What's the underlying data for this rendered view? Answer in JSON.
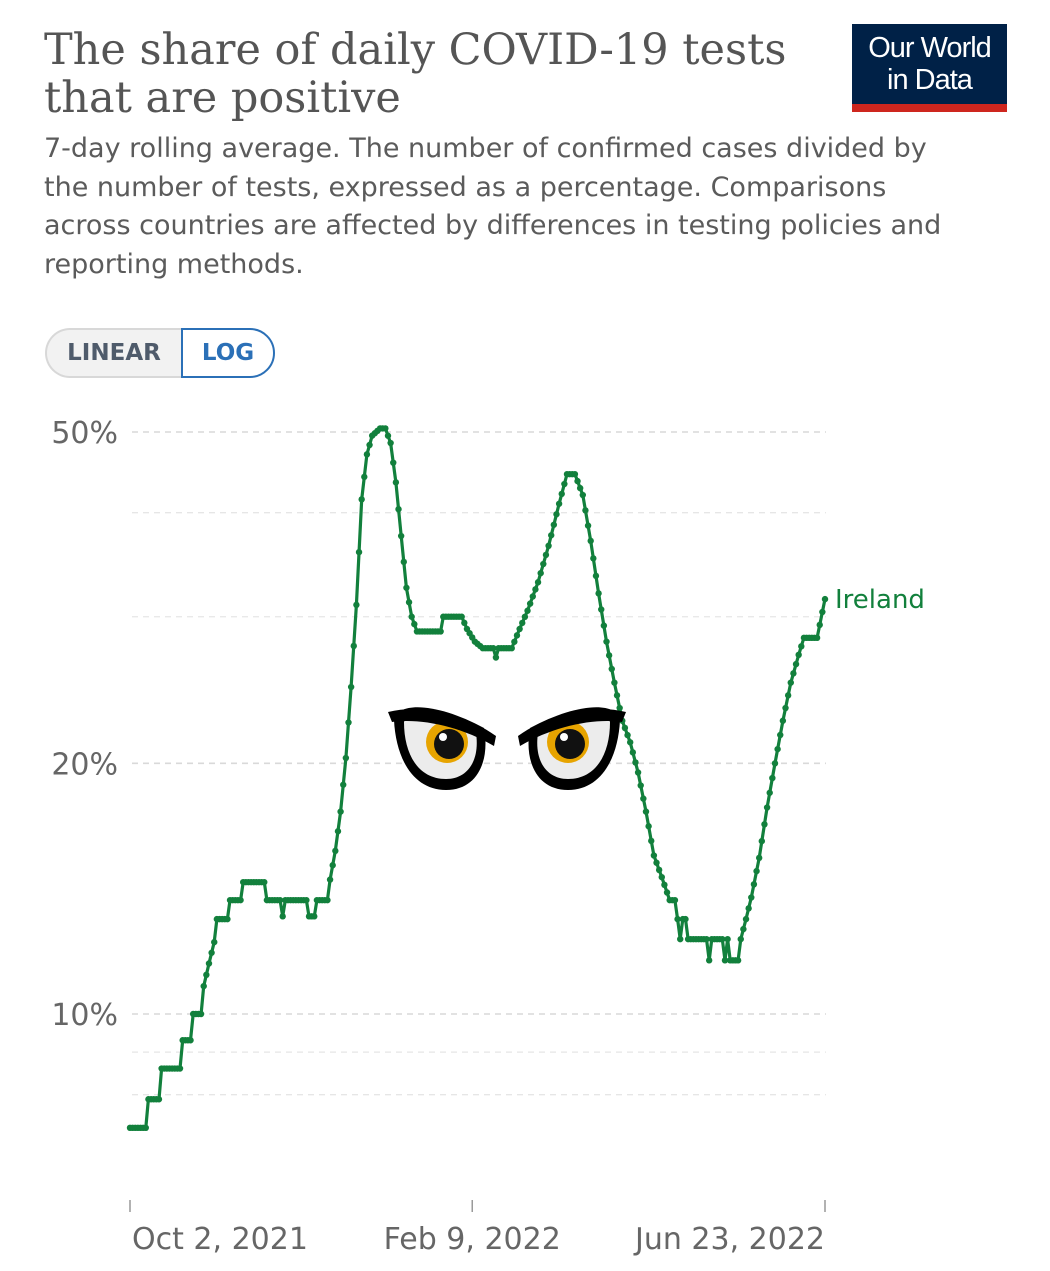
{
  "header": {
    "title": "The share of daily COVID-19 tests that are positive",
    "subtitle": "7-day rolling average. The number of confirmed cases divided by the number of tests, expressed as a percentage. Comparisons across countries are affected by differences in testing policies and reporting methods.",
    "logo_line1": "Our World",
    "logo_line2": "in Data"
  },
  "scale_toggle": {
    "linear_label": "LINEAR",
    "log_label": "LOG",
    "selected": "LOG"
  },
  "colors": {
    "series": "#12803c",
    "grid": "#d9d9d9",
    "logo_bg": "#002147",
    "logo_bar": "#ce261e",
    "toggle_active": "#2b70b7"
  },
  "overlay": {
    "icon": "angry-eyes-icon"
  },
  "chart_data": {
    "type": "line",
    "title": "The share of daily COVID-19 tests that are positive",
    "yscale": "log",
    "ylim": [
      7.2,
      52
    ],
    "y_ticks": [
      {
        "value": 50,
        "label": "50%"
      },
      {
        "value": 20,
        "label": "20%"
      },
      {
        "value": 10,
        "label": "10%"
      }
    ],
    "y_minor_gridlines": [
      40,
      30,
      9,
      8
    ],
    "xlim": [
      "2021-10-02",
      "2022-06-23"
    ],
    "x_ticks": [
      {
        "value": "2021-10-02",
        "label": "Oct 2, 2021"
      },
      {
        "value": "2022-02-09",
        "label": "Feb 9, 2022"
      },
      {
        "value": "2022-06-23",
        "label": "Jun 23, 2022"
      }
    ],
    "grid": true,
    "series": [
      {
        "name": "Ireland",
        "label_position": "end",
        "points": [
          [
            "2021-10-02",
            7.3
          ],
          [
            "2021-10-08",
            7.3
          ],
          [
            "2021-10-09",
            7.9
          ],
          [
            "2021-10-13",
            7.9
          ],
          [
            "2021-10-14",
            8.6
          ],
          [
            "2021-10-21",
            8.6
          ],
          [
            "2021-10-22",
            9.3
          ],
          [
            "2021-10-25",
            9.3
          ],
          [
            "2021-10-26",
            10.0
          ],
          [
            "2021-10-29",
            10.0
          ],
          [
            "2021-10-30",
            10.8
          ],
          [
            "2021-11-01",
            11.5
          ],
          [
            "2021-11-03",
            12.2
          ],
          [
            "2021-11-04",
            13.0
          ],
          [
            "2021-11-08",
            13.0
          ],
          [
            "2021-11-09",
            13.7
          ],
          [
            "2021-11-13",
            13.7
          ],
          [
            "2021-11-14",
            14.4
          ],
          [
            "2021-11-22",
            14.4
          ],
          [
            "2021-11-23",
            13.7
          ],
          [
            "2021-11-28",
            13.7
          ],
          [
            "2021-11-29",
            13.1
          ],
          [
            "2021-11-30",
            13.7
          ],
          [
            "2021-12-08",
            13.7
          ],
          [
            "2021-12-09",
            13.1
          ],
          [
            "2021-12-11",
            13.1
          ],
          [
            "2021-12-12",
            13.7
          ],
          [
            "2021-12-16",
            13.7
          ],
          [
            "2021-12-17",
            14.5
          ],
          [
            "2021-12-19",
            15.7
          ],
          [
            "2021-12-21",
            17.5
          ],
          [
            "2021-12-23",
            20.3
          ],
          [
            "2021-12-25",
            24.7
          ],
          [
            "2021-12-27",
            31.0
          ],
          [
            "2021-12-29",
            41.5
          ],
          [
            "2021-12-31",
            47.0
          ],
          [
            "2022-01-02",
            49.5
          ],
          [
            "2022-01-05",
            50.5
          ],
          [
            "2022-01-07",
            50.5
          ],
          [
            "2022-01-09",
            48.5
          ],
          [
            "2022-01-11",
            43.5
          ],
          [
            "2022-01-13",
            37.5
          ],
          [
            "2022-01-15",
            32.5
          ],
          [
            "2022-01-17",
            30.0
          ],
          [
            "2022-01-19",
            28.8
          ],
          [
            "2022-01-28",
            28.8
          ],
          [
            "2022-01-29",
            30.0
          ],
          [
            "2022-02-05",
            30.0
          ],
          [
            "2022-02-07",
            29.0
          ],
          [
            "2022-02-10",
            28.0
          ],
          [
            "2022-02-13",
            27.5
          ],
          [
            "2022-02-17",
            27.5
          ],
          [
            "2022-02-18",
            26.8
          ],
          [
            "2022-02-19",
            27.5
          ],
          [
            "2022-02-24",
            27.5
          ],
          [
            "2022-02-27",
            29.0
          ],
          [
            "2022-03-02",
            30.5
          ],
          [
            "2022-03-06",
            33.0
          ],
          [
            "2022-03-10",
            36.5
          ],
          [
            "2022-03-14",
            41.0
          ],
          [
            "2022-03-17",
            44.5
          ],
          [
            "2022-03-20",
            44.5
          ],
          [
            "2022-03-23",
            42.0
          ],
          [
            "2022-03-26",
            37.0
          ],
          [
            "2022-03-29",
            32.0
          ],
          [
            "2022-04-01",
            28.0
          ],
          [
            "2022-04-04",
            25.0
          ],
          [
            "2022-04-07",
            22.5
          ],
          [
            "2022-04-10",
            21.2
          ],
          [
            "2022-04-13",
            19.5
          ],
          [
            "2022-04-16",
            17.5
          ],
          [
            "2022-04-19",
            15.5
          ],
          [
            "2022-04-22",
            14.6
          ],
          [
            "2022-04-25",
            13.7
          ],
          [
            "2022-04-27",
            13.7
          ],
          [
            "2022-04-28",
            13.0
          ],
          [
            "2022-04-29",
            12.3
          ],
          [
            "2022-04-30",
            13.0
          ],
          [
            "2022-05-01",
            13.0
          ],
          [
            "2022-05-02",
            12.3
          ],
          [
            "2022-05-09",
            12.3
          ],
          [
            "2022-05-10",
            11.6
          ],
          [
            "2022-05-11",
            12.3
          ],
          [
            "2022-05-15",
            12.3
          ],
          [
            "2022-05-16",
            11.6
          ],
          [
            "2022-05-17",
            12.3
          ],
          [
            "2022-05-18",
            11.6
          ],
          [
            "2022-05-21",
            11.6
          ],
          [
            "2022-05-22",
            12.3
          ],
          [
            "2022-05-24",
            13.0
          ],
          [
            "2022-05-26",
            13.8
          ],
          [
            "2022-05-29",
            15.4
          ],
          [
            "2022-06-01",
            17.7
          ],
          [
            "2022-06-04",
            20.0
          ],
          [
            "2022-06-07",
            22.5
          ],
          [
            "2022-06-10",
            25.0
          ],
          [
            "2022-06-13",
            27.0
          ],
          [
            "2022-06-15",
            28.3
          ],
          [
            "2022-06-20",
            28.3
          ],
          [
            "2022-06-23",
            31.5
          ]
        ]
      }
    ]
  }
}
